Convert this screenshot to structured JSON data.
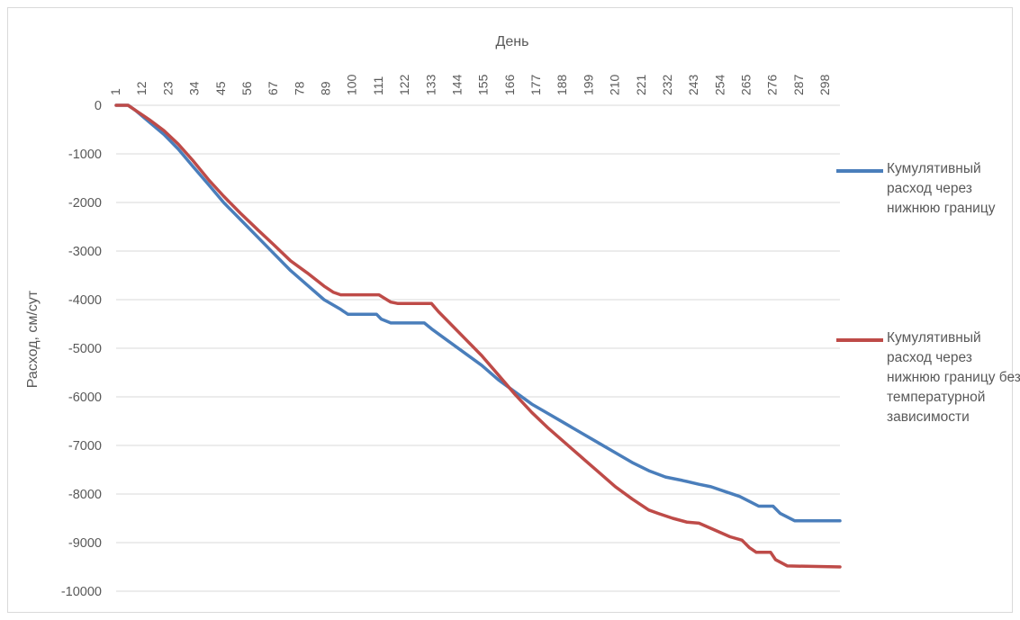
{
  "chart_data": {
    "type": "line",
    "xlabel": "День",
    "ylabel": "Расход, см/сут",
    "x_tick_labels": [
      "1",
      "12",
      "23",
      "34",
      "45",
      "56",
      "67",
      "78",
      "89",
      "100",
      "111",
      "122",
      "133",
      "144",
      "155",
      "166",
      "177",
      "188",
      "199",
      "210",
      "221",
      "232",
      "243",
      "254",
      "265",
      "276",
      "287",
      "298"
    ],
    "y_tick_labels": [
      "0",
      "-1000",
      "-2000",
      "-3000",
      "-4000",
      "-5000",
      "-6000",
      "-7000",
      "-8000",
      "-9000",
      "-10000"
    ],
    "ylim": [
      -10000,
      0
    ],
    "xlim": [
      1,
      304
    ],
    "grid": "horizontal",
    "legend_position": "right",
    "series": [
      {
        "name": "Кумулятивный расход через нижнюю границу",
        "color": "#4a7ebb",
        "points": [
          [
            1,
            0
          ],
          [
            6,
            0
          ],
          [
            9,
            -100
          ],
          [
            15,
            -350
          ],
          [
            21,
            -600
          ],
          [
            27,
            -900
          ],
          [
            33,
            -1250
          ],
          [
            40,
            -1650
          ],
          [
            46,
            -2000
          ],
          [
            53,
            -2350
          ],
          [
            60,
            -2700
          ],
          [
            67,
            -3050
          ],
          [
            74,
            -3400
          ],
          [
            81,
            -3700
          ],
          [
            88,
            -4000
          ],
          [
            95,
            -4200
          ],
          [
            98,
            -4300
          ],
          [
            110,
            -4300
          ],
          [
            112,
            -4400
          ],
          [
            116,
            -4480
          ],
          [
            130,
            -4480
          ],
          [
            133,
            -4600
          ],
          [
            140,
            -4850
          ],
          [
            147,
            -5100
          ],
          [
            154,
            -5350
          ],
          [
            161,
            -5650
          ],
          [
            168,
            -5900
          ],
          [
            175,
            -6150
          ],
          [
            182,
            -6350
          ],
          [
            189,
            -6550
          ],
          [
            196,
            -6750
          ],
          [
            203,
            -6950
          ],
          [
            210,
            -7150
          ],
          [
            217,
            -7350
          ],
          [
            224,
            -7520
          ],
          [
            231,
            -7650
          ],
          [
            238,
            -7720
          ],
          [
            245,
            -7800
          ],
          [
            250,
            -7850
          ],
          [
            256,
            -7950
          ],
          [
            262,
            -8050
          ],
          [
            266,
            -8150
          ],
          [
            270,
            -8250
          ],
          [
            276,
            -8250
          ],
          [
            279,
            -8400
          ],
          [
            285,
            -8550
          ],
          [
            304,
            -8550
          ]
        ]
      },
      {
        "name": "Кумулятивный расход через нижнюю границу без температурной зависимости",
        "color": "#be4b48",
        "points": [
          [
            1,
            0
          ],
          [
            6,
            0
          ],
          [
            9,
            -100
          ],
          [
            15,
            -300
          ],
          [
            21,
            -520
          ],
          [
            27,
            -800
          ],
          [
            33,
            -1130
          ],
          [
            40,
            -1550
          ],
          [
            46,
            -1870
          ],
          [
            53,
            -2220
          ],
          [
            60,
            -2550
          ],
          [
            67,
            -2870
          ],
          [
            74,
            -3200
          ],
          [
            81,
            -3450
          ],
          [
            88,
            -3720
          ],
          [
            92,
            -3850
          ],
          [
            95,
            -3900
          ],
          [
            111,
            -3900
          ],
          [
            116,
            -4050
          ],
          [
            119,
            -4080
          ],
          [
            133,
            -4080
          ],
          [
            136,
            -4250
          ],
          [
            141,
            -4500
          ],
          [
            147,
            -4800
          ],
          [
            154,
            -5150
          ],
          [
            161,
            -5550
          ],
          [
            168,
            -5950
          ],
          [
            175,
            -6320
          ],
          [
            182,
            -6650
          ],
          [
            189,
            -6950
          ],
          [
            196,
            -7250
          ],
          [
            203,
            -7550
          ],
          [
            210,
            -7850
          ],
          [
            217,
            -8100
          ],
          [
            224,
            -8330
          ],
          [
            228,
            -8400
          ],
          [
            234,
            -8500
          ],
          [
            240,
            -8580
          ],
          [
            245,
            -8600
          ],
          [
            252,
            -8750
          ],
          [
            258,
            -8880
          ],
          [
            263,
            -8950
          ],
          [
            266,
            -9100
          ],
          [
            269,
            -9200
          ],
          [
            275,
            -9200
          ],
          [
            277,
            -9350
          ],
          [
            282,
            -9480
          ],
          [
            304,
            -9500
          ]
        ]
      }
    ]
  }
}
